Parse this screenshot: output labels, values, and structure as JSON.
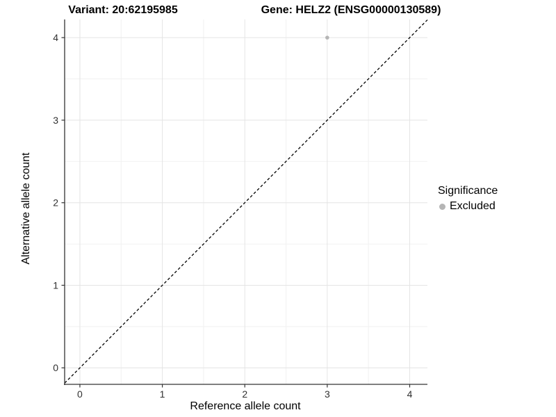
{
  "titles": {
    "variant": "Variant: 20:62195985",
    "gene": "Gene: HELZ2 (ENSG00000130589)"
  },
  "axes": {
    "x_label": "Reference allele count",
    "y_label": "Alternative allele count"
  },
  "legend": {
    "title": "Significance",
    "items": [
      {
        "label": "Excluded",
        "color": "#b5b5b5"
      }
    ]
  },
  "colors": {
    "background": "#ffffff",
    "major_gridline": "#e4e4e4",
    "minor_gridline": "#f1f1f1",
    "axis_line": "#333333",
    "tick_mark": "#333333",
    "tick_label": "#303030",
    "point": "#b5b5b5",
    "reference_line": "#000000"
  },
  "chart_data": {
    "type": "scatter",
    "title": "Variant: 20:62195985    Gene: HELZ2 (ENSG00000130589)",
    "xlabel": "Reference allele count",
    "ylabel": "Alternative allele count",
    "xlim": [
      -0.185,
      4.215
    ],
    "ylim": [
      -0.2,
      4.22
    ],
    "x_ticks": [
      0,
      1,
      2,
      3,
      4
    ],
    "y_ticks": [
      0,
      1,
      2,
      3,
      4
    ],
    "grid": "major-and-minor",
    "legend_position": "right",
    "series": [
      {
        "name": "Excluded",
        "color": "#b5b5b5",
        "points": [
          {
            "x": 3,
            "y": 4
          }
        ]
      }
    ],
    "reference_line": {
      "type": "identity y=x",
      "style": "dashed",
      "color": "#000000"
    }
  }
}
